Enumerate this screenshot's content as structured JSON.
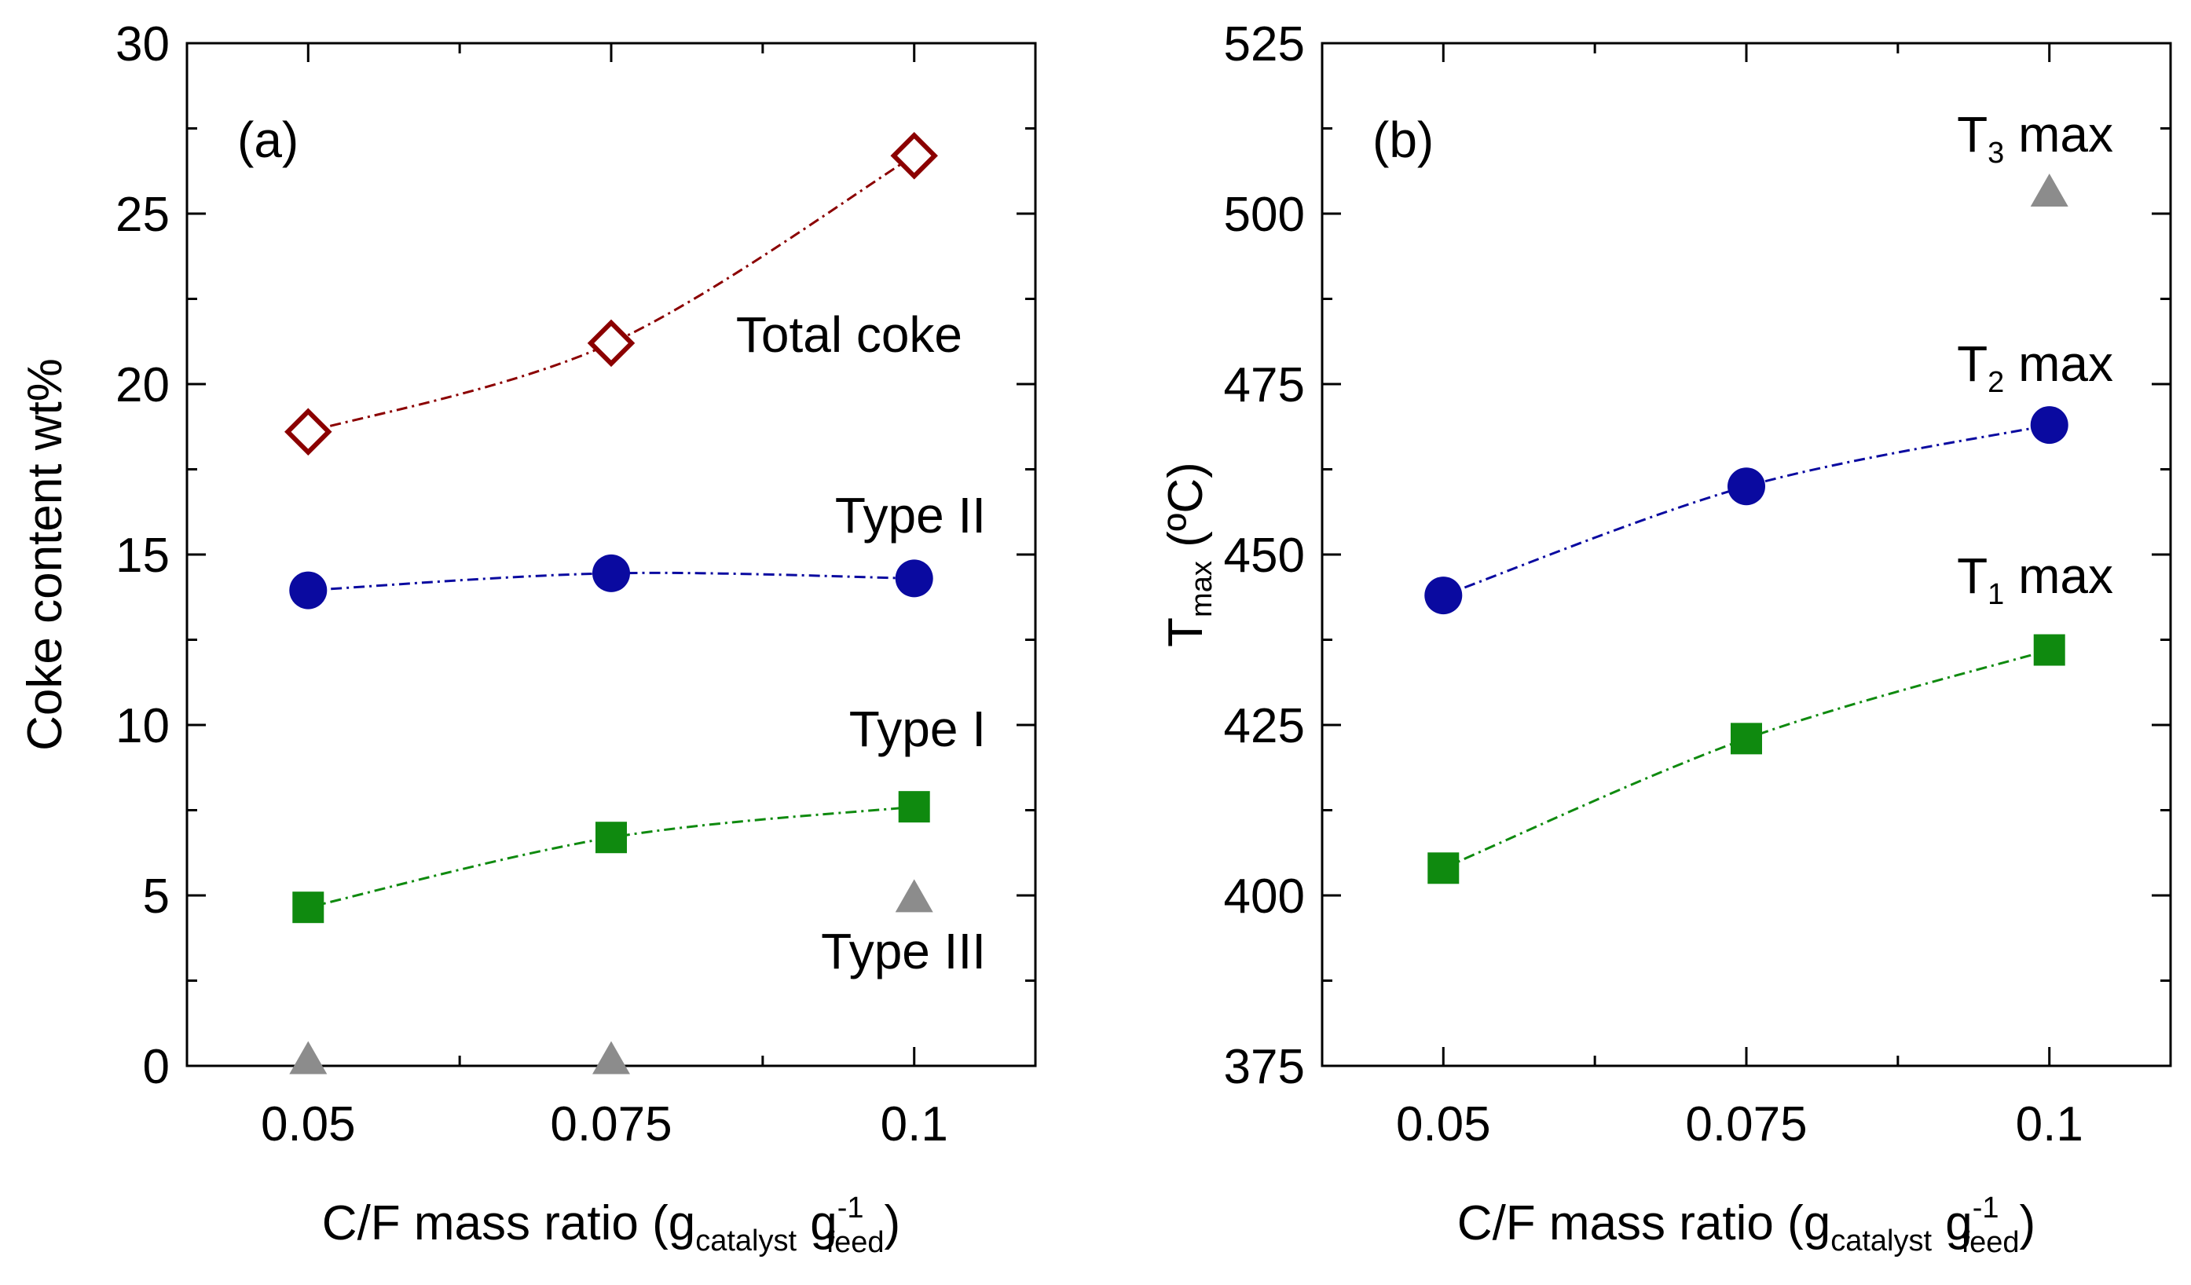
{
  "chart_data": [
    {
      "panel": "(a)",
      "type": "line",
      "xlabel": {
        "main": "C/F mass ratio (g",
        "sub1": "catalyst",
        "mid": " g",
        "sup": "-1",
        "sub2": "feed",
        "end": ")"
      },
      "ylabel": "Coke content wt%",
      "xlim": [
        0.04,
        0.11
      ],
      "ylim": [
        0,
        30
      ],
      "xticks": [
        0.05,
        0.075,
        0.1
      ],
      "xtick_labels": [
        "0.05",
        "0.075",
        "0.1"
      ],
      "yticks": [
        0,
        5,
        10,
        15,
        20,
        25,
        30
      ],
      "ytick_labels": [
        "0",
        "5",
        "10",
        "15",
        "20",
        "25",
        "30"
      ],
      "series": [
        {
          "name": "Total coke",
          "label": "Total coke",
          "marker": "diamond-open",
          "color": "#8b0000",
          "connected": true,
          "x": [
            0.05,
            0.075,
            0.1
          ],
          "values": [
            18.6,
            21.2,
            26.7
          ]
        },
        {
          "name": "Type II",
          "label": "Type II",
          "marker": "circle",
          "color": "#0a0aa0",
          "connected": true,
          "x": [
            0.05,
            0.075,
            0.1
          ],
          "values": [
            13.95,
            14.45,
            14.3
          ]
        },
        {
          "name": "Type I",
          "label": "Type I",
          "marker": "square",
          "color": "#0f8a0f",
          "connected": true,
          "x": [
            0.05,
            0.075,
            0.1
          ],
          "values": [
            4.65,
            6.7,
            7.6
          ]
        },
        {
          "name": "Type III",
          "label": "Type III",
          "marker": "triangle",
          "color": "#8c8c8c",
          "connected": false,
          "x": [
            0.05,
            0.075,
            0.1
          ],
          "values": [
            0.15,
            0.15,
            4.9
          ]
        }
      ]
    },
    {
      "panel": "(b)",
      "type": "line",
      "xlabel": {
        "main": "C/F mass ratio (g",
        "sub1": "catalyst",
        "mid": " g",
        "sup": "-1",
        "sub2": "feed",
        "end": ")"
      },
      "ylabel": {
        "main": "T",
        "sub": "max",
        "end": " (ºC)"
      },
      "xlim": [
        0.04,
        0.11
      ],
      "ylim": [
        375,
        525
      ],
      "xticks": [
        0.05,
        0.075,
        0.1
      ],
      "xtick_labels": [
        "0.05",
        "0.075",
        "0.1"
      ],
      "yticks": [
        375,
        400,
        425,
        450,
        475,
        500,
        525
      ],
      "ytick_labels": [
        "375",
        "400",
        "425",
        "450",
        "475",
        "500",
        "525"
      ],
      "series": [
        {
          "name": "T3 max",
          "label": {
            "main": "T",
            "sub": "3",
            "end": " max"
          },
          "marker": "triangle",
          "color": "#8c8c8c",
          "connected": false,
          "x": [
            0.1
          ],
          "values": [
            503
          ]
        },
        {
          "name": "T2 max",
          "label": {
            "main": "T",
            "sub": "2",
            "end": " max"
          },
          "marker": "circle",
          "color": "#0a0aa0",
          "connected": true,
          "x": [
            0.05,
            0.075,
            0.1
          ],
          "values": [
            444,
            460,
            469
          ]
        },
        {
          "name": "T1 max",
          "label": {
            "main": "T",
            "sub": "1",
            "end": " max"
          },
          "marker": "square",
          "color": "#0f8a0f",
          "connected": true,
          "x": [
            0.05,
            0.075,
            0.1
          ],
          "values": [
            404,
            423,
            436
          ]
        }
      ]
    }
  ]
}
